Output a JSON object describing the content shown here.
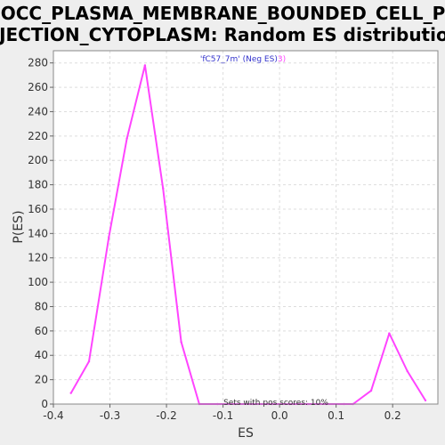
{
  "chart_data": {
    "type": "line",
    "title_lines": [
      "GOCC_PLASMA_MEMBRANE_BOUNDED_CELL_PR",
      "OJECTION_CYTOPLASM: Random ES distribution"
    ],
    "xlabel": "ES",
    "ylabel": "P(ES)",
    "xlim": [
      -0.4,
      0.28
    ],
    "ylim": [
      0,
      290
    ],
    "xticks": [
      -0.4,
      -0.3,
      -0.2,
      -0.1,
      0.0,
      0.1,
      0.2
    ],
    "xtick_labels": [
      "-0.4",
      "-0.3",
      "-0.2",
      "-0.1",
      "0.0",
      "0.1",
      "0.2"
    ],
    "yticks": [
      0,
      20,
      40,
      60,
      80,
      100,
      120,
      140,
      160,
      180,
      200,
      220,
      240,
      260,
      280
    ],
    "ytick_labels": [
      "0",
      "20",
      "40",
      "60",
      "80",
      "100",
      "120",
      "140",
      "160",
      "180",
      "200",
      "220",
      "240",
      "260",
      "280"
    ],
    "grid": true,
    "series": [
      {
        "name": "'fC57_7m' (Neg ES)",
        "color": "#ff44ff",
        "x": [
          -0.369,
          -0.337,
          -0.302,
          -0.27,
          -0.238,
          -0.206,
          -0.174,
          -0.142,
          -0.11,
          -0.078,
          -0.046,
          -0.014,
          0.018,
          0.05,
          0.082,
          0.114,
          0.13,
          0.162,
          0.194,
          0.226,
          0.258
        ],
        "y": [
          9,
          35,
          137,
          218,
          278,
          177,
          51,
          0,
          0,
          0,
          0,
          0,
          0,
          0,
          0,
          0,
          0,
          11,
          58,
          27,
          3
        ]
      }
    ],
    "legend": {
      "text": "'fC57_7m' (Neg ES)",
      "suffix": "3)",
      "text_color": "#3333cc",
      "suffix_color": "#ff44ff",
      "placement": "top-center"
    },
    "annotation": "Sets with pos scores: 10%"
  }
}
